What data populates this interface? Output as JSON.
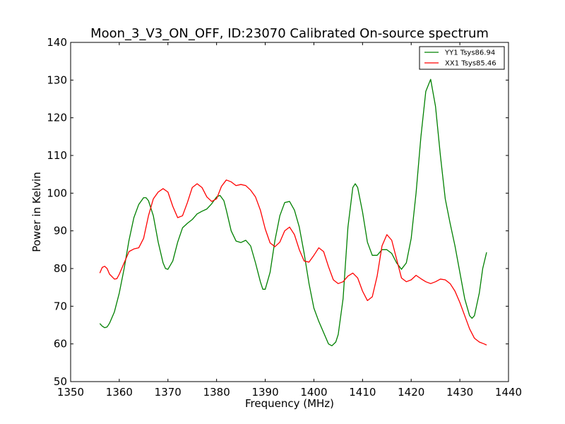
{
  "chart_data": {
    "type": "line",
    "title": "Moon_3_V3_ON_OFF, ID:23070 Calibrated On-source spectrum",
    "xlabel": "Frequency (MHz)",
    "ylabel": "Power in Kelvin",
    "xlim": [
      1350,
      1440
    ],
    "ylim": [
      50,
      140
    ],
    "xticks": [
      1350,
      1360,
      1370,
      1380,
      1390,
      1400,
      1410,
      1420,
      1430,
      1440
    ],
    "yticks": [
      50,
      60,
      70,
      80,
      90,
      100,
      110,
      120,
      130,
      140
    ],
    "grid": false,
    "legend_position": "top-right",
    "series": [
      {
        "name": "YY1 Tsys86.94",
        "color": "#008000",
        "points": [
          [
            1356,
            65.4
          ],
          [
            1356.5,
            64.7
          ],
          [
            1357,
            64.3
          ],
          [
            1357.5,
            64.5
          ],
          [
            1358,
            65.5
          ],
          [
            1359,
            68.5
          ],
          [
            1360,
            73.5
          ],
          [
            1361,
            80
          ],
          [
            1362,
            87.5
          ],
          [
            1363,
            93.5
          ],
          [
            1364,
            97
          ],
          [
            1365,
            98.8
          ],
          [
            1365.5,
            98.8
          ],
          [
            1366,
            98
          ],
          [
            1367,
            94
          ],
          [
            1368,
            87
          ],
          [
            1369,
            81.5
          ],
          [
            1369.5,
            80
          ],
          [
            1370,
            79.8
          ],
          [
            1371,
            82
          ],
          [
            1372,
            87
          ],
          [
            1373,
            90.8
          ],
          [
            1374,
            92
          ],
          [
            1375,
            93
          ],
          [
            1376,
            94.5
          ],
          [
            1377,
            95.2
          ],
          [
            1378,
            95.8
          ],
          [
            1379,
            97.2
          ],
          [
            1380,
            99
          ],
          [
            1380.7,
            99.4
          ],
          [
            1381.5,
            98
          ],
          [
            1382,
            95.5
          ],
          [
            1383,
            90
          ],
          [
            1384,
            87.3
          ],
          [
            1385,
            86.9
          ],
          [
            1386,
            87.5
          ],
          [
            1387,
            86
          ],
          [
            1388,
            81.5
          ],
          [
            1389,
            76.5
          ],
          [
            1389.5,
            74.5
          ],
          [
            1390,
            74.5
          ],
          [
            1391,
            79
          ],
          [
            1392,
            87.5
          ],
          [
            1393,
            94
          ],
          [
            1394,
            97.5
          ],
          [
            1395,
            97.8
          ],
          [
            1396,
            95.5
          ],
          [
            1397,
            91
          ],
          [
            1398,
            84
          ],
          [
            1399,
            76
          ],
          [
            1400,
            69.5
          ],
          [
            1401,
            66
          ],
          [
            1402,
            63
          ],
          [
            1403,
            60
          ],
          [
            1403.7,
            59.5
          ],
          [
            1404.5,
            60.5
          ],
          [
            1405,
            62.5
          ],
          [
            1406,
            72
          ],
          [
            1407,
            91
          ],
          [
            1408,
            101.5
          ],
          [
            1408.5,
            102.5
          ],
          [
            1409,
            101.5
          ],
          [
            1410,
            95
          ],
          [
            1411,
            87
          ],
          [
            1412,
            83.5
          ],
          [
            1413,
            83.5
          ],
          [
            1414,
            85
          ],
          [
            1415,
            85
          ],
          [
            1416,
            84
          ],
          [
            1417,
            81.5
          ],
          [
            1418,
            79.8
          ],
          [
            1419,
            81.5
          ],
          [
            1420,
            88
          ],
          [
            1421,
            100
          ],
          [
            1422,
            115
          ],
          [
            1423,
            127
          ],
          [
            1424,
            130.2
          ],
          [
            1425,
            123
          ],
          [
            1426,
            110
          ],
          [
            1427,
            98.5
          ],
          [
            1428,
            92
          ],
          [
            1429,
            86
          ],
          [
            1430,
            79
          ],
          [
            1431,
            72
          ],
          [
            1432,
            67.5
          ],
          [
            1432.5,
            66.8
          ],
          [
            1433,
            67.5
          ],
          [
            1434,
            73.5
          ],
          [
            1434.7,
            80
          ],
          [
            1435.5,
            84.3
          ]
        ]
      },
      {
        "name": "XX1 Tsys85.46",
        "color": "#ff0000",
        "points": [
          [
            1356,
            78.8
          ],
          [
            1356.5,
            80.3
          ],
          [
            1357,
            80.6
          ],
          [
            1357.5,
            80
          ],
          [
            1358,
            78.5
          ],
          [
            1359,
            77.2
          ],
          [
            1359.5,
            77.3
          ],
          [
            1360,
            78.5
          ],
          [
            1361,
            81.5
          ],
          [
            1362,
            84.5
          ],
          [
            1363,
            85.2
          ],
          [
            1364,
            85.5
          ],
          [
            1365,
            88
          ],
          [
            1366,
            94
          ],
          [
            1367,
            98.5
          ],
          [
            1368,
            100.3
          ],
          [
            1369,
            101.2
          ],
          [
            1370,
            100.3
          ],
          [
            1371,
            96.5
          ],
          [
            1372,
            93.5
          ],
          [
            1373,
            94
          ],
          [
            1374,
            97.5
          ],
          [
            1375,
            101.5
          ],
          [
            1376,
            102.5
          ],
          [
            1377,
            101.5
          ],
          [
            1378,
            99
          ],
          [
            1379,
            97.8
          ],
          [
            1380,
            98.5
          ],
          [
            1381,
            101.8
          ],
          [
            1382,
            103.5
          ],
          [
            1383,
            103
          ],
          [
            1384,
            102
          ],
          [
            1385,
            102.3
          ],
          [
            1386,
            102
          ],
          [
            1387,
            100.8
          ],
          [
            1388,
            99
          ],
          [
            1389,
            95.5
          ],
          [
            1390,
            90.5
          ],
          [
            1391,
            86.8
          ],
          [
            1392,
            85.8
          ],
          [
            1393,
            87
          ],
          [
            1394,
            90
          ],
          [
            1395,
            91
          ],
          [
            1396,
            89
          ],
          [
            1397,
            85
          ],
          [
            1398,
            82
          ],
          [
            1399,
            81.7
          ],
          [
            1400,
            83.5
          ],
          [
            1401,
            85.5
          ],
          [
            1402,
            84.5
          ],
          [
            1403,
            80.5
          ],
          [
            1404,
            77
          ],
          [
            1405,
            76
          ],
          [
            1406,
            76.5
          ],
          [
            1407,
            78
          ],
          [
            1408,
            78.8
          ],
          [
            1409,
            77.5
          ],
          [
            1410,
            74
          ],
          [
            1411,
            71.5
          ],
          [
            1412,
            72.5
          ],
          [
            1413,
            78
          ],
          [
            1414,
            86
          ],
          [
            1415,
            89
          ],
          [
            1416,
            87.5
          ],
          [
            1417,
            82.5
          ],
          [
            1418,
            77.5
          ],
          [
            1419,
            76.5
          ],
          [
            1420,
            77
          ],
          [
            1421,
            78.2
          ],
          [
            1422,
            77.3
          ],
          [
            1423,
            76.5
          ],
          [
            1424,
            76
          ],
          [
            1425,
            76.5
          ],
          [
            1426,
            77.2
          ],
          [
            1427,
            77
          ],
          [
            1428,
            76
          ],
          [
            1429,
            74
          ],
          [
            1430,
            71
          ],
          [
            1431,
            67.5
          ],
          [
            1432,
            64
          ],
          [
            1433,
            61.5
          ],
          [
            1434,
            60.5
          ],
          [
            1435,
            60
          ],
          [
            1435.5,
            59.7
          ]
        ]
      }
    ]
  }
}
